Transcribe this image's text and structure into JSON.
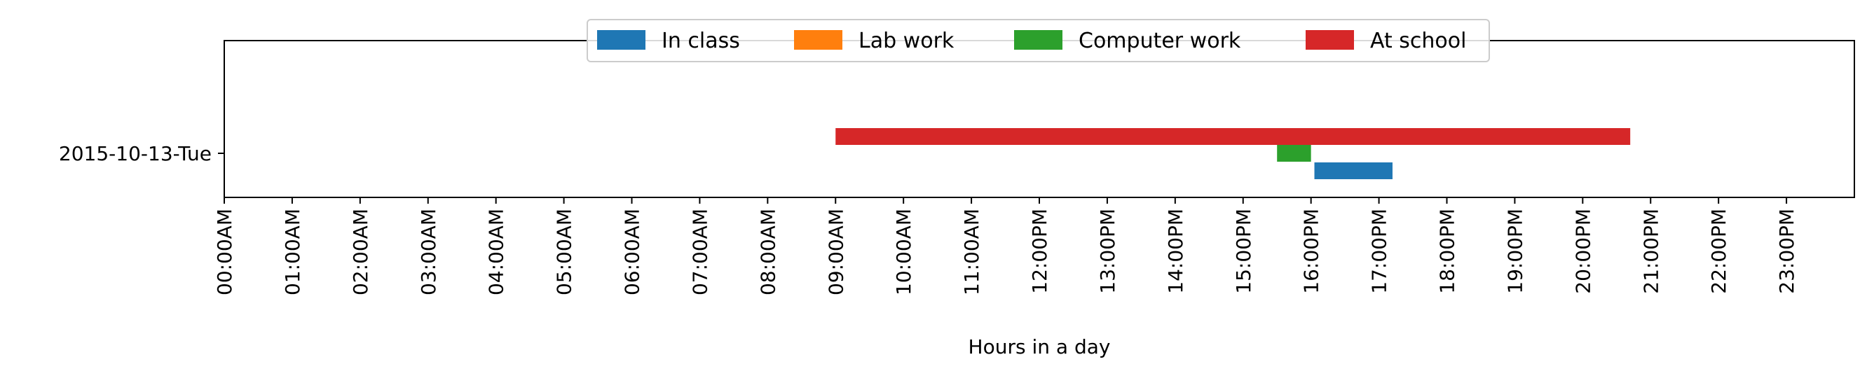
{
  "chart_data": {
    "type": "bar",
    "orientation": "horizontal",
    "title": "",
    "xlabel": "Hours in a day",
    "ylabel": "",
    "xlim": [
      0,
      24
    ],
    "grid": false,
    "legend_position": "top-center",
    "categories": [
      "2015-10-13-Tue"
    ],
    "x_ticks": [
      0,
      1,
      2,
      3,
      4,
      5,
      6,
      7,
      8,
      9,
      10,
      11,
      12,
      13,
      14,
      15,
      16,
      17,
      18,
      19,
      20,
      21,
      22,
      23
    ],
    "x_tick_labels": [
      "00:00AM",
      "01:00AM",
      "02:00AM",
      "03:00AM",
      "04:00AM",
      "05:00AM",
      "06:00AM",
      "07:00AM",
      "08:00AM",
      "09:00AM",
      "10:00AM",
      "11:00AM",
      "12:00PM",
      "13:00PM",
      "14:00PM",
      "15:00PM",
      "16:00PM",
      "17:00PM",
      "18:00PM",
      "19:00PM",
      "20:00PM",
      "21:00PM",
      "22:00PM",
      "23:00PM"
    ],
    "series": [
      {
        "name": "In class",
        "color": "#1f77b4",
        "intervals": [
          {
            "start": 16.05,
            "end": 17.2
          }
        ]
      },
      {
        "name": "Lab work",
        "color": "#ff7f0e",
        "intervals": []
      },
      {
        "name": "Computer work",
        "color": "#2ca02c",
        "intervals": [
          {
            "start": 15.5,
            "end": 16.0
          }
        ]
      },
      {
        "name": "At school",
        "color": "#d62728",
        "intervals": [
          {
            "start": 9.0,
            "end": 20.7
          }
        ]
      }
    ]
  }
}
